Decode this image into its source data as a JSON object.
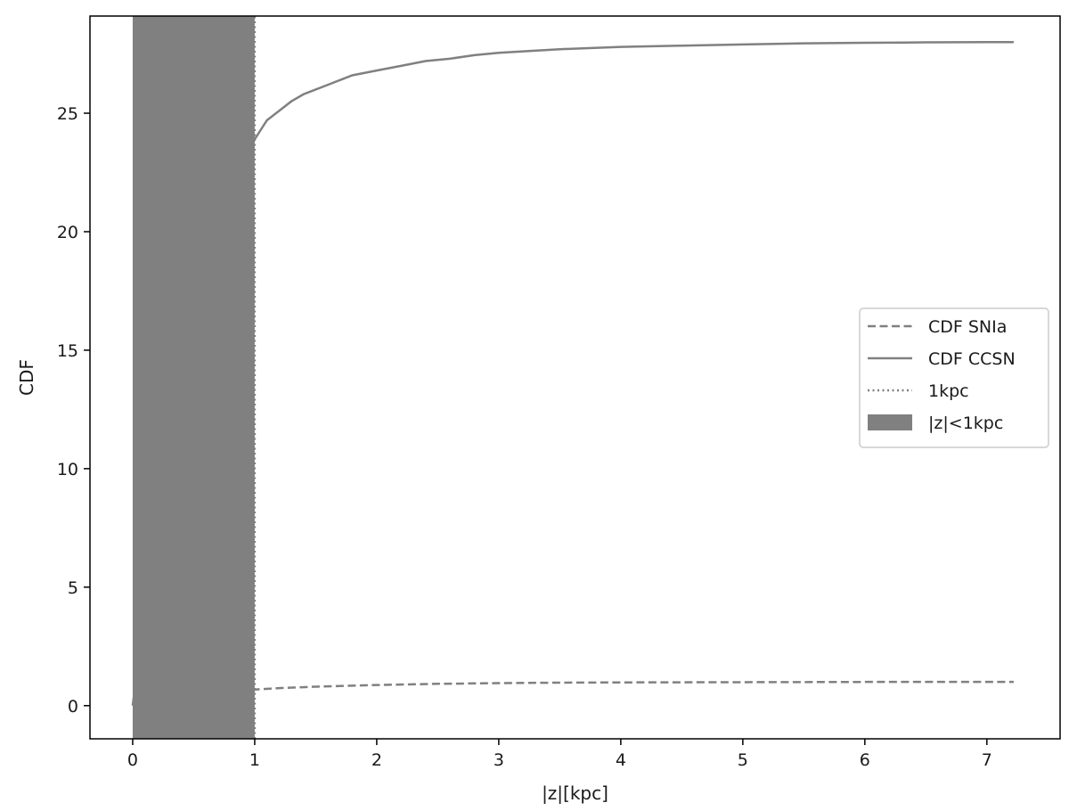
{
  "chart_data": {
    "type": "line",
    "title": "",
    "xlabel": "|z|[kpc]",
    "ylabel": "CDF",
    "xlim": [
      -0.35,
      7.6
    ],
    "ylim": [
      -1.4,
      29.1
    ],
    "xticks": [
      0,
      1,
      2,
      3,
      4,
      5,
      6,
      7
    ],
    "yticks": [
      0,
      5,
      10,
      15,
      20,
      25
    ],
    "grid": false,
    "legend_position": "center-right",
    "colors": {
      "line": "#808080",
      "shade": "#808080",
      "axes": "#000000"
    },
    "series": [
      {
        "name": "CDF SNIa",
        "style": "dashed",
        "x": [
          0,
          0.05,
          0.1,
          0.2,
          0.3,
          0.4,
          0.5,
          0.6,
          0.7,
          0.8,
          0.9,
          1.0,
          1.2,
          1.5,
          2.0,
          2.5,
          3.0,
          3.5,
          4.0,
          5.0,
          6.0,
          7.0,
          7.22
        ],
        "y": [
          0,
          0.07,
          0.13,
          0.24,
          0.33,
          0.41,
          0.48,
          0.53,
          0.58,
          0.62,
          0.65,
          0.68,
          0.74,
          0.8,
          0.87,
          0.92,
          0.95,
          0.97,
          0.98,
          0.99,
          1.0,
          1.0,
          1.0
        ]
      },
      {
        "name": "CDF CCSN",
        "style": "solid",
        "x": [
          0,
          0.2,
          0.4,
          0.6,
          0.8,
          1.0,
          1.05,
          1.1,
          1.2,
          1.3,
          1.4,
          1.5,
          1.6,
          1.7,
          1.8,
          2.0,
          2.2,
          2.4,
          2.6,
          2.8,
          3.0,
          3.5,
          4.0,
          4.5,
          5.0,
          5.5,
          6.0,
          6.5,
          7.0,
          7.22
        ],
        "y": [
          0,
          8.0,
          14.0,
          18.5,
          21.8,
          23.9,
          24.3,
          24.7,
          25.1,
          25.5,
          25.8,
          26.0,
          26.2,
          26.4,
          26.6,
          26.8,
          27.0,
          27.2,
          27.3,
          27.45,
          27.55,
          27.7,
          27.8,
          27.85,
          27.9,
          27.95,
          27.97,
          27.99,
          28.0,
          28.0
        ]
      },
      {
        "name": "1kpc",
        "style": "dotted",
        "x": [
          1,
          1
        ],
        "y": [
          -1.4,
          29.1
        ]
      }
    ],
    "shaded_regions": [
      {
        "name": "|z|<1kpc",
        "x_start": 0,
        "x_end": 1
      }
    ]
  }
}
